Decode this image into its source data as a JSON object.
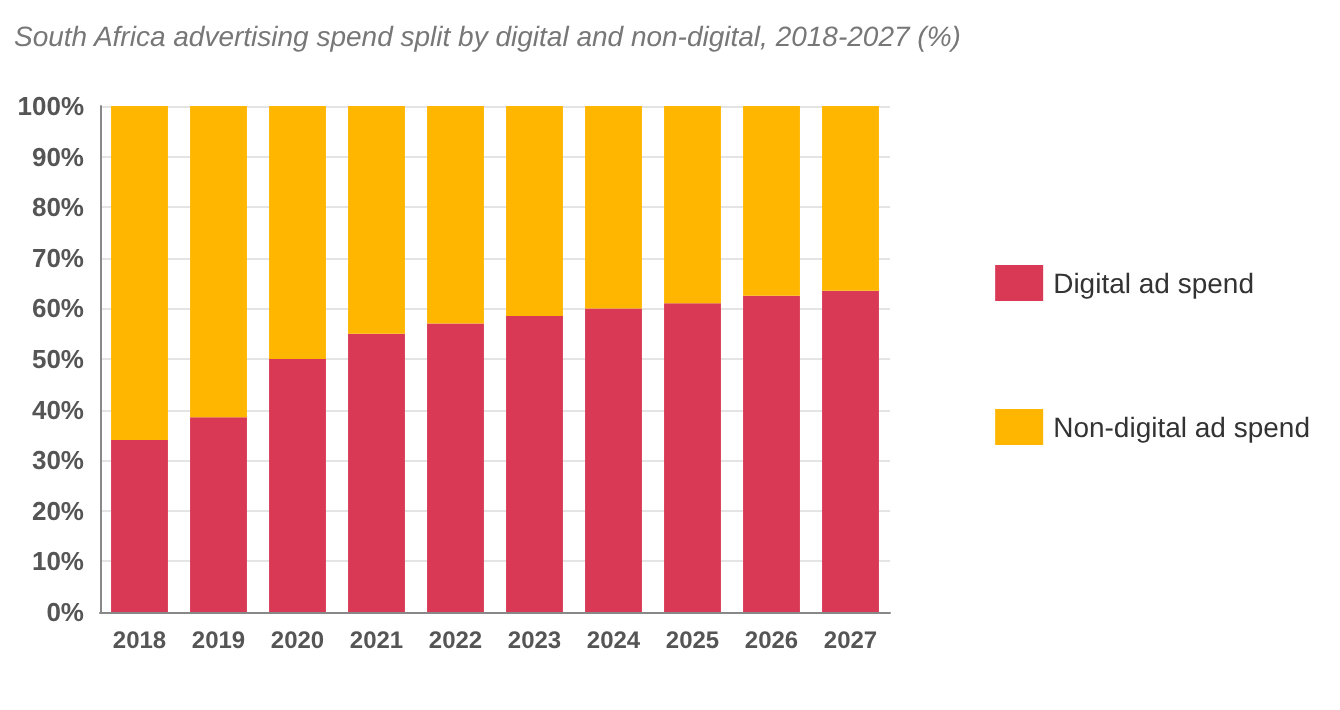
{
  "chart_data": {
    "type": "bar",
    "title": "South Africa advertising spend split by digital and non-digital, 2018-2027 (%)",
    "categories": [
      "2018",
      "2019",
      "2020",
      "2021",
      "2022",
      "2023",
      "2024",
      "2025",
      "2026",
      "2027"
    ],
    "stacked": true,
    "series": [
      {
        "name": "Digital ad spend",
        "color": "#d93954",
        "values": [
          34,
          38.5,
          50,
          55,
          57,
          58.5,
          60,
          61,
          62.5,
          63.5
        ]
      },
      {
        "name": "Non-digital ad spend",
        "color": "#ffb600",
        "values": [
          66,
          61.5,
          50,
          45,
          43,
          41.5,
          40,
          39,
          37.5,
          36.5
        ]
      }
    ],
    "ylim": [
      0,
      100
    ],
    "yticks": [
      {
        "value": 0,
        "label": "0%"
      },
      {
        "value": 10,
        "label": "10%"
      },
      {
        "value": 20,
        "label": "20%"
      },
      {
        "value": 30,
        "label": "30%"
      },
      {
        "value": 40,
        "label": "40%"
      },
      {
        "value": 50,
        "label": "50%"
      },
      {
        "value": 60,
        "label": "60%"
      },
      {
        "value": 70,
        "label": "70%"
      },
      {
        "value": 80,
        "label": "80%"
      },
      {
        "value": 90,
        "label": "90%"
      },
      {
        "value": 100,
        "label": "100%"
      }
    ],
    "grid": "y",
    "legend": "right"
  }
}
